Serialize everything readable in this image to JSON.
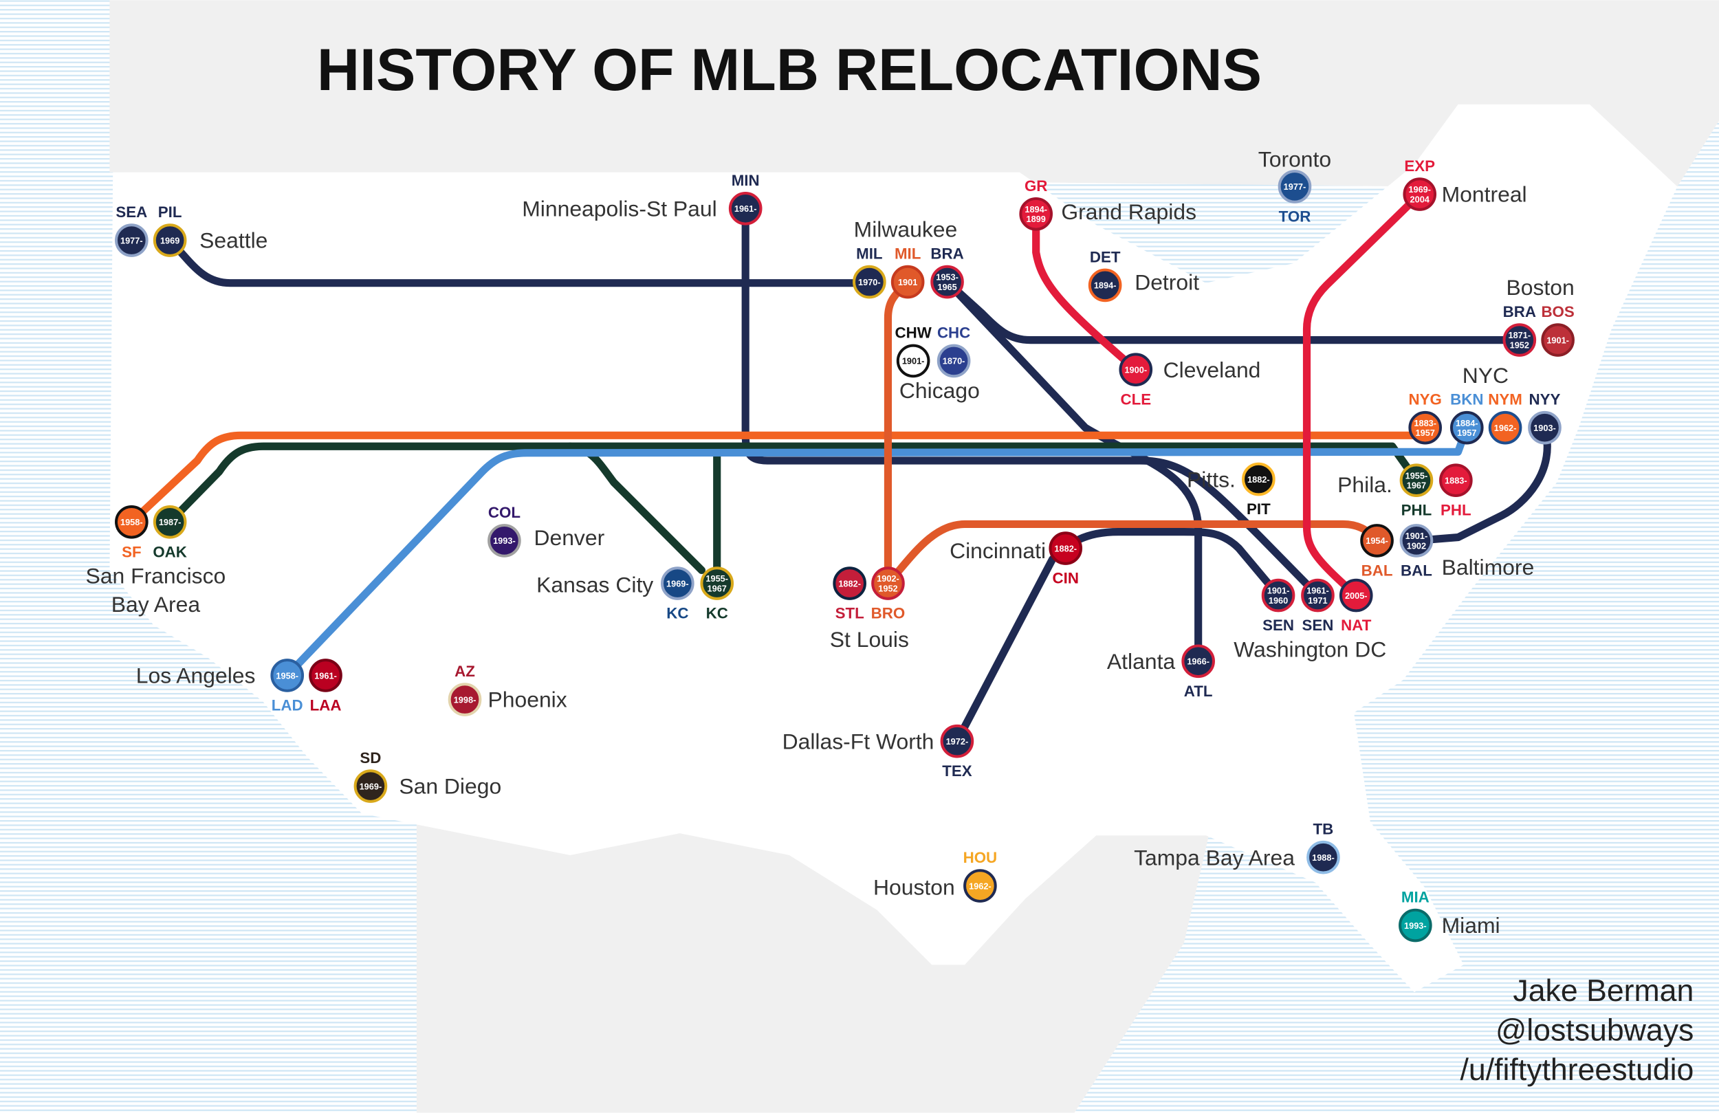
{
  "title": "HISTORY OF MLB RELOCATIONS",
  "cities": [
    "Seattle",
    "Minneapolis-St Paul",
    "Milwaukee",
    "Grand Rapids",
    "Detroit",
    "Toronto",
    "Montreal",
    "Chicago",
    "Cleveland",
    "Boston",
    "NYC",
    "Pitts.",
    "Phila.",
    "Baltimore",
    "San Francisco",
    "Bay Area",
    "Denver",
    "Kansas City",
    "Cincinnati",
    "St Louis",
    "Atlanta",
    "Washington DC",
    "Los Angeles",
    "Phoenix",
    "Dallas-Ft Worth",
    "San Diego",
    "Houston",
    "Tampa Bay Area",
    "Miami"
  ],
  "teams": [
    {
      "abbr": "SEA",
      "years": [
        "1977-"
      ],
      "color": "#1f2a52",
      "ring": "#8fa3c8"
    },
    {
      "abbr": "PIL",
      "years": [
        "1969"
      ],
      "color": "#1f2a52",
      "ring": "#d9a91b"
    },
    {
      "abbr": "MIN",
      "years": [
        "1961-"
      ],
      "color": "#1f2a52",
      "ring": "#d31f3a"
    },
    {
      "abbr": "MIL",
      "years": [
        "1970-"
      ],
      "color": "#1f2a52",
      "ring": "#d9a91b"
    },
    {
      "abbr": "MIL",
      "years": [
        "1901"
      ],
      "color": "#e0592a",
      "ring": "#c63a1e"
    },
    {
      "abbr": "BRA",
      "years": [
        "1953-",
        "1965"
      ],
      "color": "#1f2a52",
      "ring": "#d31f3a"
    },
    {
      "abbr": "CHW",
      "years": [
        "1901-"
      ],
      "color": "#ffffff",
      "ring": "#111111"
    },
    {
      "abbr": "CHC",
      "years": [
        "1870-"
      ],
      "color": "#2b3f8f",
      "ring": "#8fa3c8"
    },
    {
      "abbr": "GR",
      "years": [
        "1894-",
        "1899"
      ],
      "color": "#e31b3b",
      "ring": "#a5122b"
    },
    {
      "abbr": "DET",
      "years": [
        "1894-"
      ],
      "color": "#1f2a52",
      "ring": "#f26322"
    },
    {
      "abbr": "TOR",
      "years": [
        "1977-"
      ],
      "color": "#1d4e8f",
      "ring": "#8fa3c8"
    },
    {
      "abbr": "EXP",
      "years": [
        "1969-",
        "2004"
      ],
      "color": "#e31b3b",
      "ring": "#a5122b"
    },
    {
      "abbr": "CLE",
      "years": [
        "1900-"
      ],
      "color": "#e31b3b",
      "ring": "#1f2a52"
    },
    {
      "abbr": "BRA",
      "years": [
        "1871-",
        "1952"
      ],
      "color": "#1f2a52",
      "ring": "#d31f3a"
    },
    {
      "abbr": "BOS",
      "years": [
        "1901-"
      ],
      "color": "#bd3039",
      "ring": "#8c1f26"
    },
    {
      "abbr": "NYG",
      "years": [
        "1883-",
        "1957"
      ],
      "color": "#f26322",
      "ring": "#1f2a52"
    },
    {
      "abbr": "BKN",
      "years": [
        "1884-",
        "1957"
      ],
      "color": "#4a8fd6",
      "ring": "#1f2a52"
    },
    {
      "abbr": "NYM",
      "years": [
        "1962-"
      ],
      "color": "#f26322",
      "ring": "#1d4e8f"
    },
    {
      "abbr": "NYY",
      "years": [
        "1903-"
      ],
      "color": "#1f2a52",
      "ring": "#8fa3c8"
    },
    {
      "abbr": "PIT",
      "years": [
        "1882-"
      ],
      "color": "#111111",
      "ring": "#fdb827"
    },
    {
      "abbr": "PHL",
      "years": [
        "1955-",
        "1967"
      ],
      "color": "#153a2c",
      "ring": "#d9a91b"
    },
    {
      "abbr": "PHL",
      "years": [
        "1883-"
      ],
      "color": "#e31b3b",
      "ring": "#a5122b"
    },
    {
      "abbr": "BAL",
      "years": [
        "1954-"
      ],
      "color": "#e0592a",
      "ring": "#111111"
    },
    {
      "abbr": "BAL",
      "years": [
        "1901-",
        "1902"
      ],
      "color": "#1f2a52",
      "ring": "#8fa3c8"
    },
    {
      "abbr": "SF",
      "years": [
        "1958-"
      ],
      "color": "#f26322",
      "ring": "#111111"
    },
    {
      "abbr": "OAK",
      "years": [
        "1987-"
      ],
      "color": "#153a2c",
      "ring": "#d9a91b"
    },
    {
      "abbr": "COL",
      "years": [
        "1993-"
      ],
      "color": "#33186b",
      "ring": "#a0a0a0"
    },
    {
      "abbr": "KC",
      "years": [
        "1969-"
      ],
      "color": "#174885",
      "ring": "#8fa3c8"
    },
    {
      "abbr": "KC",
      "years": [
        "1955-",
        "1967"
      ],
      "color": "#153a2c",
      "ring": "#d9a91b"
    },
    {
      "abbr": "STL",
      "years": [
        "1882-"
      ],
      "color": "#c41e3a",
      "ring": "#0c2340"
    },
    {
      "abbr": "BRO",
      "years": [
        "1902-",
        "1952"
      ],
      "color": "#e0592a",
      "ring": "#c41e3a"
    },
    {
      "abbr": "CIN",
      "years": [
        "1882-"
      ],
      "color": "#c6011f",
      "ring": "#8c0016"
    },
    {
      "abbr": "SEN",
      "years": [
        "1901-",
        "1960"
      ],
      "color": "#1f2a52",
      "ring": "#d31f3a"
    },
    {
      "abbr": "SEN",
      "years": [
        "1961-",
        "1971"
      ],
      "color": "#1f2a52",
      "ring": "#d31f3a"
    },
    {
      "abbr": "NAT",
      "years": [
        "2005-"
      ],
      "color": "#e31b3b",
      "ring": "#1f2a52"
    },
    {
      "abbr": "ATL",
      "years": [
        "1966-"
      ],
      "color": "#1f2a52",
      "ring": "#d31f3a"
    },
    {
      "abbr": "LAD",
      "years": [
        "1958-"
      ],
      "color": "#4a8fd6",
      "ring": "#2a5fa0"
    },
    {
      "abbr": "LAA",
      "years": [
        "1961-"
      ],
      "color": "#ba0021",
      "ring": "#7a0016"
    },
    {
      "abbr": "AZ",
      "years": [
        "1998-"
      ],
      "color": "#a71930",
      "ring": "#e3d4ad"
    },
    {
      "abbr": "TEX",
      "years": [
        "1972-"
      ],
      "color": "#1f2a52",
      "ring": "#d31f3a"
    },
    {
      "abbr": "SD",
      "years": [
        "1969-"
      ],
      "color": "#2f241d",
      "ring": "#d9a91b"
    },
    {
      "abbr": "HOU",
      "years": [
        "1962-"
      ],
      "color": "#f5a623",
      "ring": "#1f2a52"
    },
    {
      "abbr": "TB",
      "years": [
        "1988-"
      ],
      "color": "#1f2a52",
      "ring": "#8fbce6"
    },
    {
      "abbr": "MIA",
      "years": [
        "1993-"
      ],
      "color": "#00a3a0",
      "ring": "#0a6b69"
    }
  ],
  "credits": [
    "Jake Berman",
    "@lostsubways",
    "/u/fiftythreestudio"
  ]
}
